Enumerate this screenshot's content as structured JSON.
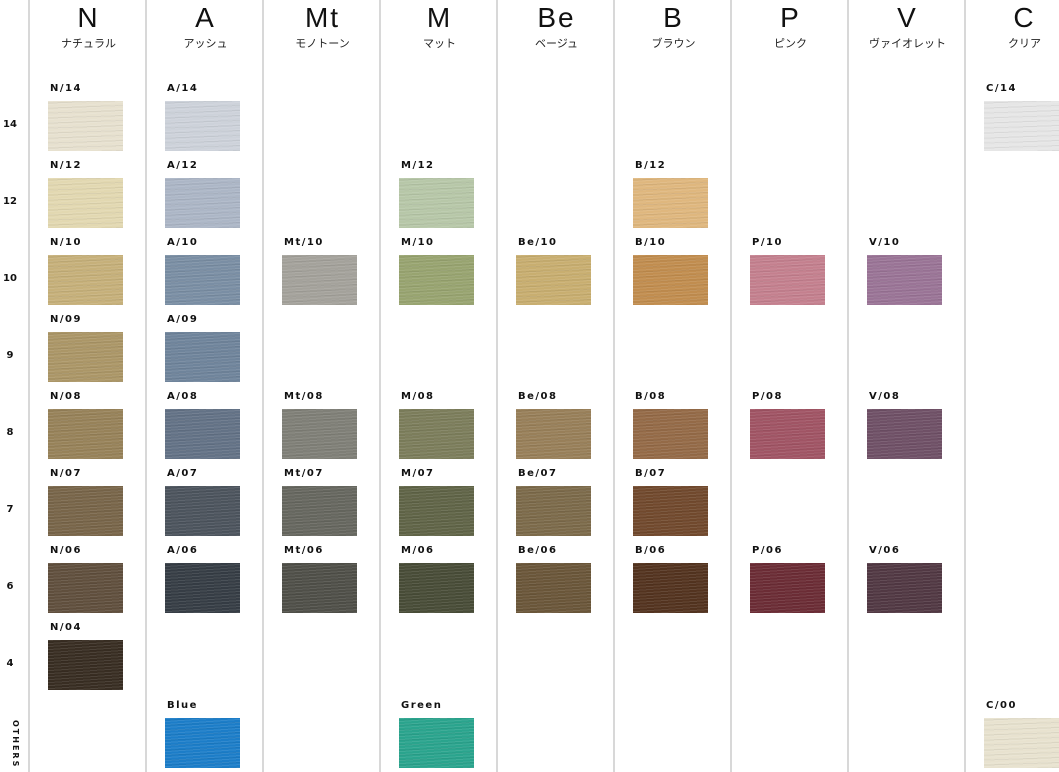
{
  "columns": [
    {
      "key": "N",
      "letter": "N",
      "name": "ナチュラル"
    },
    {
      "key": "A",
      "letter": "A",
      "name": "アッシュ"
    },
    {
      "key": "Mt",
      "letter": "Mt",
      "name": "モノトーン"
    },
    {
      "key": "M",
      "letter": "M",
      "name": "マット"
    },
    {
      "key": "Be",
      "letter": "Be",
      "name": "ベージュ"
    },
    {
      "key": "B",
      "letter": "B",
      "name": "ブラウン"
    },
    {
      "key": "P",
      "letter": "P",
      "name": "ピンク"
    },
    {
      "key": "V",
      "letter": "V",
      "name": "ヴァイオレット"
    },
    {
      "key": "C",
      "letter": "C",
      "name": "クリア"
    }
  ],
  "rows": [
    {
      "key": "14",
      "label": "14"
    },
    {
      "key": "12",
      "label": "12"
    },
    {
      "key": "10",
      "label": "10"
    },
    {
      "key": "9",
      "label": "9"
    },
    {
      "key": "8",
      "label": "8"
    },
    {
      "key": "7",
      "label": "7"
    },
    {
      "key": "6",
      "label": "6"
    },
    {
      "key": "4",
      "label": "4"
    },
    {
      "key": "others",
      "label": "OTHERS"
    }
  ],
  "swatches": [
    {
      "code": "N/14",
      "col": "N",
      "row": "14",
      "color": "#e7e1cf"
    },
    {
      "code": "N/12",
      "col": "N",
      "row": "12",
      "color": "#e2d8b1"
    },
    {
      "code": "N/10",
      "col": "N",
      "row": "10",
      "color": "#c6b07a"
    },
    {
      "code": "N/09",
      "col": "N",
      "row": "9",
      "color": "#ab9667"
    },
    {
      "code": "N/08",
      "col": "N",
      "row": "8",
      "color": "#978259"
    },
    {
      "code": "N/07",
      "col": "N",
      "row": "7",
      "color": "#786549"
    },
    {
      "code": "N/06",
      "col": "N",
      "row": "6",
      "color": "#604f3d"
    },
    {
      "code": "N/04",
      "col": "N",
      "row": "4",
      "color": "#382d22"
    },
    {
      "code": "A/14",
      "col": "A",
      "row": "14",
      "color": "#cdd2da"
    },
    {
      "code": "A/12",
      "col": "A",
      "row": "12",
      "color": "#acb6c6"
    },
    {
      "code": "A/10",
      "col": "A",
      "row": "10",
      "color": "#7a8ea4"
    },
    {
      "code": "A/09",
      "col": "A",
      "row": "9",
      "color": "#6f849b"
    },
    {
      "code": "A/08",
      "col": "A",
      "row": "8",
      "color": "#637286"
    },
    {
      "code": "A/07",
      "col": "A",
      "row": "7",
      "color": "#4c545d"
    },
    {
      "code": "A/06",
      "col": "A",
      "row": "6",
      "color": "#363d45"
    },
    {
      "code": "Blue",
      "col": "A",
      "row": "others",
      "color": "#1c7dc8"
    },
    {
      "code": "Mt/10",
      "col": "Mt",
      "row": "10",
      "color": "#a4a29b"
    },
    {
      "code": "Mt/08",
      "col": "Mt",
      "row": "8",
      "color": "#7f7f77"
    },
    {
      "code": "Mt/07",
      "col": "Mt",
      "row": "7",
      "color": "#66675f"
    },
    {
      "code": "Mt/06",
      "col": "Mt",
      "row": "6",
      "color": "#4f4f48"
    },
    {
      "code": "M/12",
      "col": "M",
      "row": "12",
      "color": "#b7c7a8"
    },
    {
      "code": "M/10",
      "col": "M",
      "row": "10",
      "color": "#98a470"
    },
    {
      "code": "M/08",
      "col": "M",
      "row": "8",
      "color": "#7c7d5b"
    },
    {
      "code": "M/07",
      "col": "M",
      "row": "7",
      "color": "#606447"
    },
    {
      "code": "M/06",
      "col": "M",
      "row": "6",
      "color": "#484c37"
    },
    {
      "code": "Green",
      "col": "M",
      "row": "others",
      "color": "#2aa48d"
    },
    {
      "code": "Be/10",
      "col": "Be",
      "row": "10",
      "color": "#c8ae70"
    },
    {
      "code": "Be/08",
      "col": "Be",
      "row": "8",
      "color": "#987f59"
    },
    {
      "code": "Be/07",
      "col": "Be",
      "row": "7",
      "color": "#7c6a4a"
    },
    {
      "code": "Be/06",
      "col": "Be",
      "row": "6",
      "color": "#6a5639"
    },
    {
      "code": "B/12",
      "col": "B",
      "row": "12",
      "color": "#dfb77e"
    },
    {
      "code": "B/10",
      "col": "B",
      "row": "10",
      "color": "#c18d4f"
    },
    {
      "code": "B/08",
      "col": "B",
      "row": "8",
      "color": "#946a47"
    },
    {
      "code": "B/07",
      "col": "B",
      "row": "7",
      "color": "#71492d"
    },
    {
      "code": "B/06",
      "col": "B",
      "row": "6",
      "color": "#53331f"
    },
    {
      "code": "P/10",
      "col": "P",
      "row": "10",
      "color": "#c4808e"
    },
    {
      "code": "P/08",
      "col": "P",
      "row": "8",
      "color": "#a05464"
    },
    {
      "code": "P/06",
      "col": "P",
      "row": "6",
      "color": "#6b2c35"
    },
    {
      "code": "V/10",
      "col": "V",
      "row": "10",
      "color": "#9a7496"
    },
    {
      "code": "V/08",
      "col": "V",
      "row": "8",
      "color": "#6f5066"
    },
    {
      "code": "V/06",
      "col": "V",
      "row": "6",
      "color": "#513843"
    },
    {
      "code": "C/14",
      "col": "C",
      "row": "14",
      "color": "#e6e6e6"
    },
    {
      "code": "C/00",
      "col": "C",
      "row": "others",
      "color": "#e8e2cf"
    }
  ]
}
